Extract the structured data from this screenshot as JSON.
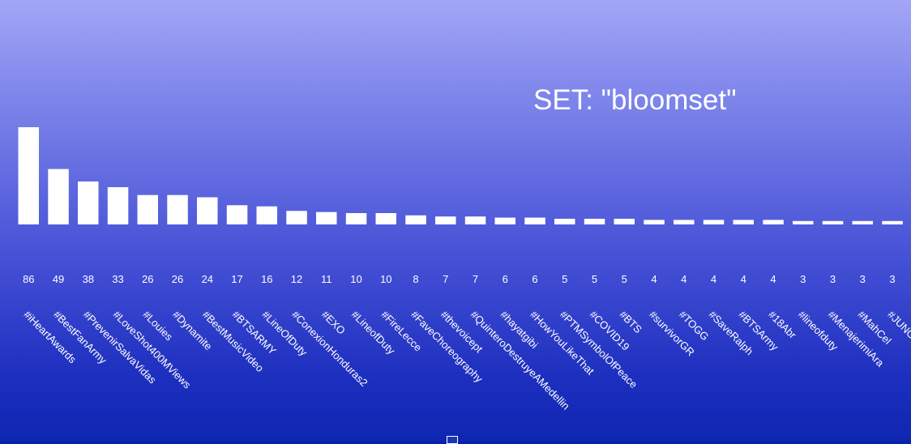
{
  "set_title": "SET: \"bloomset\"",
  "chart_data": {
    "type": "bar",
    "title": "SET: \"bloomset\"",
    "xlabel": "",
    "ylabel": "",
    "ylim": [
      0,
      86
    ],
    "grid": false,
    "bar_color": "#ffffff",
    "categories": [
      "#iHeartAwards",
      "#BestFanArmy",
      "#PrevenirSalvaVidas",
      "#LoveShot400MViews",
      "#Louies",
      "#Dynamite",
      "#BestMusicVideo",
      "#BTSARMY",
      "#LineOfDuty",
      "#ConexionHonduras2",
      "#EXO",
      "#LineofDuty",
      "#FireLecce",
      "#FaveChoreography",
      "#thevoicept",
      "#QuinteroDestruyeAMedellin",
      "#hayatgibi",
      "#HowYouLikeThat",
      "#PTMSymbolOfPeace",
      "#COVID19",
      "#BTS",
      "#survivorGR",
      "#TOGG",
      "#SaveRalph",
      "#BTSArmy",
      "#18Abr",
      "#lineofduty",
      "#MenajerimiAra",
      "#MahCel",
      "#JUNG"
    ],
    "values": [
      86,
      49,
      38,
      33,
      26,
      26,
      24,
      17,
      16,
      12,
      11,
      10,
      10,
      8,
      7,
      7,
      6,
      6,
      5,
      5,
      5,
      4,
      4,
      4,
      4,
      4,
      3,
      3,
      3,
      3
    ]
  }
}
